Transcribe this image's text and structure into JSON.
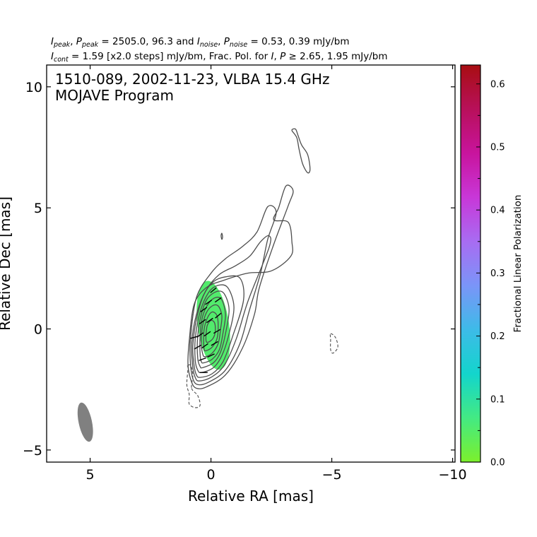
{
  "header": {
    "line1": {
      "i_peak_sym": "I",
      "i_peak_sub": "peak",
      "sep1": ", ",
      "p_peak_sym": "P",
      "p_peak_sub": "peak",
      "eq1": " = 2505.0, 96.3 and ",
      "i_noise_sym": "I",
      "i_noise_sub": "noise",
      "sep2": ", ",
      "p_noise_sym": "P",
      "p_noise_sub": "noise",
      "eq2": " = 0.53, 0.39 mJy/bm"
    },
    "line2": {
      "i_cont_sym": "I",
      "i_cont_sub": "cont",
      "eq1": " = 1.59 [x2.0 steps] mJy/bm, Frac. Pol. for ",
      "i_sym": "I",
      "sep": ", ",
      "p_sym": "P",
      "eq2": " ≥ 2.65, 1.95 mJy/bm"
    }
  },
  "chart_data": {
    "type": "heatmap",
    "title_lines": [
      "1510-089, 2002-11-23, VLBA 15.4 GHz",
      "MOJAVE Program"
    ],
    "xlabel": "Relative RA [mas]",
    "ylabel": "Relative Dec [mas]",
    "xlim": [
      6.8,
      -10.1
    ],
    "ylim": [
      -5.5,
      10.9
    ],
    "x_ticks": [
      5,
      0,
      -5,
      -10
    ],
    "x_tick_labels": [
      "5",
      "0",
      "−5",
      "−10"
    ],
    "y_ticks": [
      10,
      5,
      0,
      -5
    ],
    "y_tick_labels": [
      "10",
      "5",
      "0",
      "−5"
    ],
    "colorbar": {
      "label": "Fractional Linear Polarization",
      "range": [
        0.0,
        0.63
      ],
      "ticks": [
        0.0,
        0.1,
        0.2,
        0.3,
        0.4,
        0.5,
        0.6
      ],
      "tick_labels": [
        "0.0",
        "0.1",
        "0.2",
        "0.3",
        "0.4",
        "0.5",
        "0.6"
      ],
      "minor_ticks": [
        0.05,
        0.15,
        0.25,
        0.35,
        0.45,
        0.55
      ],
      "colors": [
        "#7cf02c",
        "#43ea83",
        "#13d5cc",
        "#3dbbe8",
        "#7a95f8",
        "#a86cf2",
        "#c837d8",
        "#c8149d",
        "#b8105a",
        "#a80e12"
      ]
    },
    "core": {
      "x": -0.05,
      "y": 0.0
    },
    "stokes_i_contours": [
      {
        "level": "1",
        "points": [
          [
            0.6,
            -2.45
          ],
          [
            0.2,
            -2.4
          ],
          [
            -0.6,
            -1.9
          ],
          [
            -1.3,
            -0.8
          ],
          [
            -1.8,
            0.6
          ],
          [
            -2.0,
            1.7
          ],
          [
            -2.6,
            3.5
          ],
          [
            -3.2,
            5.1
          ],
          [
            -3.4,
            5.7
          ],
          [
            -3.1,
            5.9
          ],
          [
            -2.8,
            5.0
          ],
          [
            -2.6,
            4.5
          ],
          [
            -3.2,
            4.4
          ],
          [
            -3.35,
            3.6
          ],
          [
            -3.3,
            3.0
          ],
          [
            -2.5,
            2.4
          ],
          [
            -1.5,
            2.3
          ],
          [
            -0.5,
            2.0
          ],
          [
            0.2,
            1.7
          ],
          [
            0.7,
            1.0
          ],
          [
            0.9,
            -0.5
          ],
          [
            0.95,
            -1.5
          ],
          [
            0.8,
            -2.2
          ]
        ]
      },
      {
        "level": "2",
        "points": [
          [
            0.55,
            -2.3
          ],
          [
            0.1,
            -2.2
          ],
          [
            -0.6,
            -1.7
          ],
          [
            -1.2,
            -0.6
          ],
          [
            -1.6,
            0.8
          ],
          [
            -2.05,
            2.3
          ],
          [
            -2.35,
            3.7
          ],
          [
            -2.7,
            4.8
          ],
          [
            -2.35,
            5.05
          ],
          [
            -1.9,
            4.0
          ],
          [
            -1.3,
            3.4
          ],
          [
            -0.6,
            2.9
          ],
          [
            0.0,
            2.3
          ],
          [
            0.6,
            1.3
          ],
          [
            0.85,
            -0.4
          ],
          [
            0.85,
            -1.4
          ],
          [
            0.75,
            -2.05
          ]
        ]
      },
      {
        "level": "3",
        "points": [
          [
            0.5,
            -2.15
          ],
          [
            0.0,
            -2.0
          ],
          [
            -0.55,
            -1.5
          ],
          [
            -1.05,
            -0.4
          ],
          [
            -1.55,
            1.2
          ],
          [
            -2.4,
            3.35
          ],
          [
            -2.4,
            3.85
          ],
          [
            -2.05,
            3.6
          ],
          [
            -1.6,
            3.0
          ],
          [
            -1.0,
            2.6
          ],
          [
            -0.35,
            2.25
          ],
          [
            0.2,
            1.6
          ],
          [
            0.6,
            0.6
          ],
          [
            0.8,
            -0.6
          ],
          [
            0.75,
            -1.6
          ],
          [
            0.65,
            -2.0
          ]
        ]
      },
      {
        "level": "4",
        "points": [
          [
            0.45,
            -2.0
          ],
          [
            -0.05,
            -1.85
          ],
          [
            -0.5,
            -1.35
          ],
          [
            -0.9,
            -0.3
          ],
          [
            -1.35,
            1.2
          ],
          [
            -1.2,
            2.1
          ],
          [
            -0.6,
            2.15
          ],
          [
            -0.1,
            1.95
          ],
          [
            0.3,
            1.4
          ],
          [
            0.6,
            0.4
          ],
          [
            0.75,
            -0.7
          ],
          [
            0.7,
            -1.5
          ],
          [
            0.6,
            -1.9
          ]
        ]
      },
      {
        "level": "5",
        "points": [
          [
            0.4,
            -1.8
          ],
          [
            -0.1,
            -1.6
          ],
          [
            -0.45,
            -1.1
          ],
          [
            -0.75,
            -0.2
          ],
          [
            -0.95,
            0.9
          ],
          [
            -0.7,
            1.7
          ],
          [
            -0.3,
            1.8
          ],
          [
            0.1,
            1.5
          ],
          [
            0.45,
            0.7
          ],
          [
            0.65,
            -0.4
          ],
          [
            0.65,
            -1.3
          ],
          [
            0.55,
            -1.7
          ]
        ]
      },
      {
        "level": "6",
        "points": [
          [
            0.35,
            -1.6
          ],
          [
            -0.1,
            -1.4
          ],
          [
            -0.4,
            -0.95
          ],
          [
            -0.6,
            -0.2
          ],
          [
            -0.75,
            0.8
          ],
          [
            -0.55,
            1.45
          ],
          [
            -0.25,
            1.55
          ],
          [
            0.15,
            1.25
          ],
          [
            0.4,
            0.6
          ],
          [
            0.55,
            -0.3
          ],
          [
            0.55,
            -1.2
          ],
          [
            0.45,
            -1.55
          ]
        ]
      },
      {
        "level": "7",
        "points": [
          [
            0.3,
            -1.4
          ],
          [
            -0.05,
            -1.25
          ],
          [
            -0.35,
            -0.85
          ],
          [
            -0.5,
            -0.15
          ],
          [
            -0.6,
            0.6
          ],
          [
            -0.45,
            1.2
          ],
          [
            -0.2,
            1.3
          ],
          [
            0.1,
            1.05
          ],
          [
            0.35,
            0.5
          ],
          [
            0.45,
            -0.3
          ],
          [
            0.45,
            -1.05
          ],
          [
            0.4,
            -1.35
          ]
        ]
      },
      {
        "level": "8",
        "points": [
          [
            0.25,
            -1.15
          ],
          [
            -0.05,
            -1.0
          ],
          [
            -0.3,
            -0.6
          ],
          [
            -0.4,
            0.0
          ],
          [
            -0.45,
            0.55
          ],
          [
            -0.3,
            0.95
          ],
          [
            -0.05,
            0.95
          ],
          [
            0.2,
            0.65
          ],
          [
            0.35,
            0.1
          ],
          [
            0.4,
            -0.55
          ],
          [
            0.35,
            -1.0
          ]
        ]
      },
      {
        "level": "9",
        "points": [
          [
            0.2,
            -0.9
          ],
          [
            -0.05,
            -0.75
          ],
          [
            -0.25,
            -0.4
          ],
          [
            -0.3,
            0.1
          ],
          [
            -0.25,
            0.55
          ],
          [
            -0.05,
            0.7
          ],
          [
            0.15,
            0.45
          ],
          [
            0.28,
            0.0
          ],
          [
            0.3,
            -0.5
          ],
          [
            0.28,
            -0.85
          ]
        ]
      },
      {
        "level": "10",
        "points": [
          [
            0.12,
            -0.55
          ],
          [
            -0.08,
            -0.4
          ],
          [
            -0.18,
            -0.1
          ],
          [
            -0.15,
            0.25
          ],
          [
            0.0,
            0.35
          ],
          [
            0.15,
            0.15
          ],
          [
            0.2,
            -0.2
          ],
          [
            0.2,
            -0.5
          ]
        ]
      },
      {
        "level": "north-1",
        "points": [
          [
            -3.35,
            8.2
          ],
          [
            -3.55,
            7.9
          ],
          [
            -3.65,
            7.4
          ],
          [
            -3.8,
            6.8
          ],
          [
            -4.0,
            6.45
          ],
          [
            -4.1,
            6.6
          ],
          [
            -4.0,
            7.2
          ],
          [
            -3.75,
            7.6
          ],
          [
            -3.6,
            8.0
          ],
          [
            -3.5,
            8.25
          ]
        ]
      },
      {
        "level": "north-2",
        "points": [
          [
            -0.45,
            3.95
          ],
          [
            -0.48,
            3.8
          ],
          [
            -0.45,
            3.7
          ],
          [
            -0.42,
            3.85
          ]
        ]
      }
    ],
    "negative_contours": [
      {
        "points": [
          [
            -4.95,
            -0.2
          ],
          [
            -5.15,
            -0.35
          ],
          [
            -5.25,
            -0.75
          ],
          [
            -5.05,
            -1.0
          ],
          [
            -4.95,
            -0.85
          ],
          [
            -4.95,
            -0.45
          ]
        ]
      },
      {
        "points": [
          [
            0.8,
            -2.45
          ],
          [
            0.55,
            -2.75
          ],
          [
            0.45,
            -3.15
          ],
          [
            0.65,
            -3.25
          ],
          [
            0.9,
            -3.1
          ],
          [
            0.9,
            -2.7
          ],
          [
            1.0,
            -2.3
          ],
          [
            0.95,
            -1.6
          ],
          [
            1.0,
            -1.55
          ],
          [
            0.85,
            -1.5
          ],
          [
            0.75,
            -1.9
          ]
        ]
      }
    ],
    "pol_fraction_region": {
      "center": [
        -0.1,
        0.15
      ],
      "radius_x": 0.65,
      "radius_y": 1.85,
      "angle_deg": -8,
      "frac_pol": 0.035,
      "color": "#52eb6c"
    },
    "evpa_ticks": [
      {
        "x": -0.3,
        "y": 1.2,
        "angle_deg": 55
      },
      {
        "x": 0.1,
        "y": 1.1,
        "angle_deg": 55
      },
      {
        "x": 0.3,
        "y": 0.8,
        "angle_deg": 55
      },
      {
        "x": -0.3,
        "y": 0.55,
        "angle_deg": 50
      },
      {
        "x": 0.05,
        "y": 0.35,
        "angle_deg": 55
      },
      {
        "x": 0.35,
        "y": 0.3,
        "angle_deg": 55
      },
      {
        "x": -0.25,
        "y": -0.1,
        "angle_deg": 60
      },
      {
        "x": 0.15,
        "y": -0.2,
        "angle_deg": 55
      },
      {
        "x": 0.45,
        "y": -0.25,
        "angle_deg": 55
      },
      {
        "x": -0.15,
        "y": -0.6,
        "angle_deg": 60
      },
      {
        "x": 0.25,
        "y": -0.7,
        "angle_deg": 55
      },
      {
        "x": 0.55,
        "y": -0.75,
        "angle_deg": 60
      },
      {
        "x": 0.0,
        "y": -1.1,
        "angle_deg": 65
      },
      {
        "x": 0.35,
        "y": -1.25,
        "angle_deg": 70
      },
      {
        "x": 0.7,
        "y": -0.35,
        "angle_deg": 75
      },
      {
        "x": -0.1,
        "y": 1.6,
        "angle_deg": 50
      },
      {
        "x": 0.3,
        "y": -1.8,
        "angle_deg": 90
      }
    ],
    "beam": {
      "center": [
        5.2,
        -3.85
      ],
      "major_mas": 1.65,
      "minor_mas": 0.55,
      "pa_deg": -12,
      "color": "#808080"
    }
  }
}
